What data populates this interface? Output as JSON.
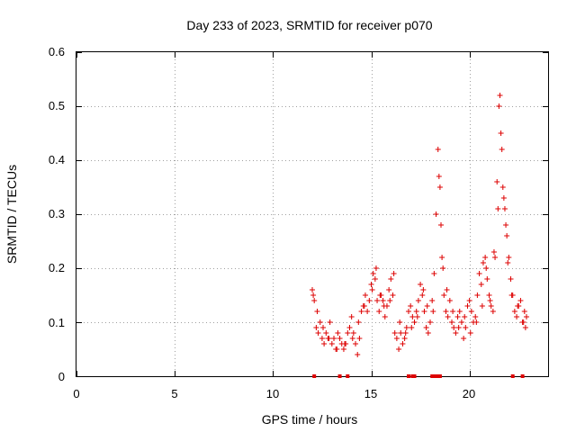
{
  "chart_data": {
    "type": "scatter",
    "title": "Day 233 of 2023, SRMTID for receiver p070",
    "xlabel": "GPS time / hours",
    "ylabel": "SRMTID / TECUs",
    "xlim": [
      0,
      24
    ],
    "ylim": [
      0,
      0.6
    ],
    "x_ticks": [
      0,
      5,
      10,
      15,
      20
    ],
    "y_ticks": [
      0,
      0.1,
      0.2,
      0.3,
      0.4,
      0.5,
      0.6
    ],
    "x_tick_labels": [
      "0",
      "5",
      "10",
      "15",
      "20"
    ],
    "y_tick_labels": [
      "0",
      "0.1",
      "0.2",
      "0.3",
      "0.4",
      "0.5",
      "0.6"
    ],
    "grid": true,
    "marker": "plus",
    "colors": {
      "series": "#dd0000",
      "grid": "#a0a0a0",
      "axis": "#000000"
    },
    "series": [
      {
        "name": "SRMTID",
        "x": [
          12.0,
          12.1,
          12.2,
          12.3,
          12.4,
          12.5,
          12.6,
          12.7,
          12.8,
          12.9,
          13.0,
          13.1,
          13.2,
          13.3,
          13.4,
          13.5,
          13.6,
          13.7,
          13.8,
          13.9,
          14.0,
          14.1,
          14.2,
          14.3,
          14.4,
          14.5,
          14.6,
          14.7,
          14.8,
          14.9,
          15.0,
          15.1,
          15.2,
          15.3,
          15.4,
          15.5,
          15.6,
          15.7,
          15.8,
          15.9,
          16.0,
          16.1,
          16.2,
          16.3,
          16.4,
          16.5,
          16.6,
          16.7,
          16.8,
          16.9,
          17.0,
          17.1,
          17.2,
          17.3,
          17.4,
          17.5,
          17.6,
          17.7,
          17.8,
          17.9,
          18.0,
          18.1,
          18.2,
          18.3,
          18.4,
          18.5,
          18.6,
          18.7,
          18.8,
          18.9,
          19.0,
          19.1,
          19.2,
          19.3,
          19.4,
          19.5,
          19.6,
          19.7,
          19.8,
          19.9,
          20.0,
          20.1,
          20.2,
          20.3,
          20.4,
          20.5,
          20.6,
          20.7,
          20.8,
          20.9,
          21.0,
          21.1,
          21.2,
          21.3,
          21.4,
          21.5,
          21.6,
          21.7,
          21.8,
          21.9,
          22.0,
          22.1,
          22.2,
          22.3,
          22.4,
          22.5,
          22.6,
          22.7,
          22.8,
          22.9,
          12.05,
          12.25,
          12.55,
          12.85,
          13.25,
          13.65,
          14.05,
          14.35,
          14.65,
          15.05,
          15.25,
          15.45,
          15.65,
          15.95,
          16.15,
          16.45,
          16.75,
          17.05,
          17.35,
          17.65,
          17.85,
          18.15,
          18.45,
          18.55,
          18.65,
          18.85,
          19.15,
          19.45,
          19.75,
          20.05,
          20.35,
          20.65,
          20.85,
          21.05,
          21.25,
          21.45,
          21.55,
          21.65,
          21.75,
          21.85,
          21.95,
          22.15,
          22.45,
          22.75,
          22.85
        ],
        "y": [
          0.16,
          0.14,
          0.09,
          0.08,
          0.1,
          0.07,
          0.06,
          0.08,
          0.07,
          0.1,
          0.06,
          0.07,
          0.05,
          0.08,
          0.07,
          0.06,
          0.05,
          0.06,
          0.08,
          0.09,
          0.11,
          0.08,
          0.06,
          0.04,
          0.07,
          0.12,
          0.13,
          0.15,
          0.12,
          0.14,
          0.17,
          0.19,
          0.18,
          0.14,
          0.12,
          0.15,
          0.14,
          0.11,
          0.13,
          0.16,
          0.18,
          0.15,
          0.08,
          0.07,
          0.05,
          0.08,
          0.06,
          0.07,
          0.09,
          0.12,
          0.13,
          0.11,
          0.1,
          0.12,
          0.14,
          0.17,
          0.15,
          0.12,
          0.09,
          0.08,
          0.1,
          0.14,
          0.19,
          0.3,
          0.42,
          0.35,
          0.22,
          0.15,
          0.12,
          0.11,
          0.14,
          0.1,
          0.09,
          0.08,
          0.11,
          0.12,
          0.1,
          0.07,
          0.09,
          0.13,
          0.14,
          0.12,
          0.1,
          0.11,
          0.15,
          0.19,
          0.17,
          0.21,
          0.22,
          0.18,
          0.15,
          0.13,
          0.12,
          0.22,
          0.36,
          0.5,
          0.45,
          0.35,
          0.31,
          0.26,
          0.22,
          0.18,
          0.15,
          0.12,
          0.11,
          0.13,
          0.14,
          0.1,
          0.12,
          0.11,
          0.15,
          0.12,
          0.09,
          0.07,
          0.05,
          0.06,
          0.07,
          0.1,
          0.13,
          0.16,
          0.2,
          0.15,
          0.13,
          0.14,
          0.19,
          0.1,
          0.08,
          0.09,
          0.11,
          0.16,
          0.13,
          0.12,
          0.37,
          0.28,
          0.2,
          0.16,
          0.12,
          0.09,
          0.11,
          0.08,
          0.1,
          0.13,
          0.2,
          0.14,
          0.23,
          0.31,
          0.52,
          0.42,
          0.33,
          0.28,
          0.21,
          0.15,
          0.13,
          0.1,
          0.09
        ]
      }
    ],
    "zero_markers_x": [
      12.1,
      13.4,
      13.8,
      16.9,
      17.1,
      17.2,
      18.1,
      18.2,
      18.3,
      18.4,
      18.5,
      22.2,
      22.7
    ]
  }
}
